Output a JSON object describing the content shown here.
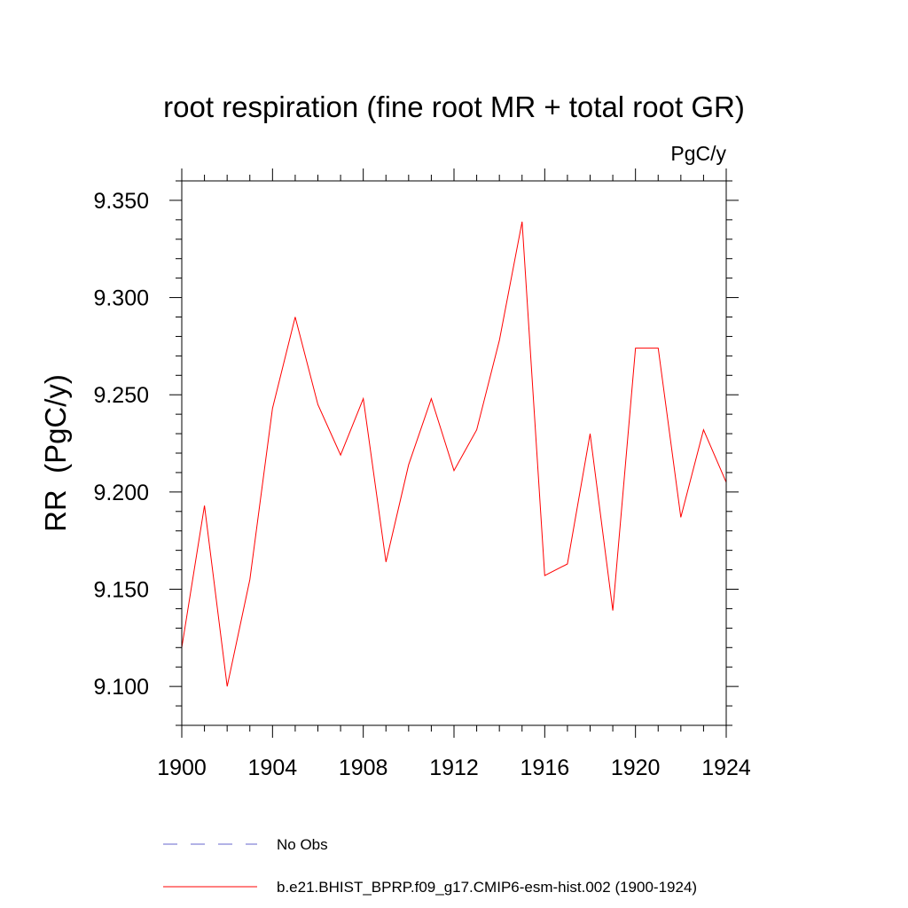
{
  "chart_data": {
    "type": "line",
    "title": "root respiration (fine root MR + total root GR)",
    "units_label": "PgC/y",
    "ylabel": "RR  (PgC/y)",
    "xlabel": "",
    "xlim": [
      1900,
      1924
    ],
    "ylim": [
      9.08,
      9.36
    ],
    "x_ticks": [
      1900,
      1904,
      1908,
      1912,
      1916,
      1920,
      1924
    ],
    "x_tick_labels": [
      "1900",
      "1904",
      "1908",
      "1912",
      "1916",
      "1920",
      "1924"
    ],
    "y_ticks": [
      9.1,
      9.15,
      9.2,
      9.25,
      9.3,
      9.35
    ],
    "y_tick_labels": [
      "9.100",
      "9.150",
      "9.200",
      "9.250",
      "9.300",
      "9.350"
    ],
    "grid": false,
    "legend_position": "bottom",
    "series": [
      {
        "name": "b.e21.BHIST_BPRP.f09_g17.CMIP6-esm-hist.002 (1900-1924)",
        "color": "#ff0000",
        "dash": "solid",
        "x": [
          1900,
          1901,
          1902,
          1903,
          1904,
          1905,
          1906,
          1907,
          1908,
          1909,
          1910,
          1911,
          1912,
          1913,
          1914,
          1915,
          1916,
          1917,
          1918,
          1919,
          1920,
          1921,
          1922,
          1923,
          1924
        ],
        "values": [
          9.12,
          9.193,
          9.1,
          9.155,
          9.243,
          9.29,
          9.245,
          9.219,
          9.248,
          9.164,
          9.214,
          9.248,
          9.211,
          9.232,
          9.278,
          9.339,
          9.157,
          9.163,
          9.23,
          9.139,
          9.274,
          9.274,
          9.187,
          9.232,
          9.205
        ]
      }
    ],
    "legend": [
      {
        "label": "No Obs",
        "color": "#6666cc",
        "dash": "dashed"
      },
      {
        "label": "b.e21.BHIST_BPRP.f09_g17.CMIP6-esm-hist.002 (1900-1924)",
        "color": "#ff0000",
        "dash": "solid"
      }
    ]
  }
}
